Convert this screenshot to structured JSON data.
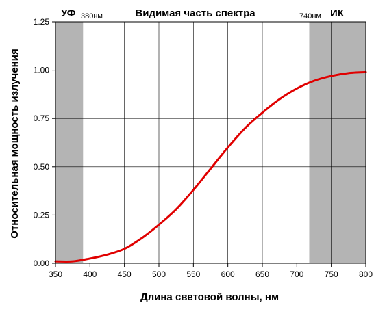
{
  "chart_data": {
    "type": "line",
    "title": "Видимая часть спектра",
    "xlabel": "Длина световой волны, нм",
    "ylabel": "Относительная мощность излучения",
    "xlim": [
      350,
      800
    ],
    "ylim": [
      0,
      1.25
    ],
    "xticks": [
      350,
      400,
      450,
      500,
      550,
      600,
      650,
      700,
      750,
      800
    ],
    "xtick_labels": [
      "350",
      "400",
      "450",
      "500",
      "550",
      "600",
      "650",
      "700",
      "750",
      "800"
    ],
    "yticks": [
      0,
      0.25,
      0.5,
      0.75,
      1.0,
      1.25
    ],
    "ytick_labels": [
      "0.00",
      "0.25",
      "0.50",
      "0.75",
      "1.00",
      "1.25"
    ],
    "grid": true,
    "regions": [
      {
        "label": "УФ",
        "marker": "380нм",
        "x0": 350,
        "x1": 390,
        "color": "#b4b4b4"
      },
      {
        "label": "ИК",
        "marker": "740нм",
        "x0": 718,
        "x1": 800,
        "color": "#b4b4b4"
      }
    ],
    "series": [
      {
        "color": "#e00000",
        "x": [
          350,
          375,
          400,
          425,
          450,
          475,
          500,
          525,
          550,
          575,
          600,
          625,
          650,
          675,
          700,
          725,
          750,
          775,
          800
        ],
        "y": [
          0.01,
          0.01,
          0.025,
          0.045,
          0.075,
          0.13,
          0.2,
          0.28,
          0.38,
          0.49,
          0.6,
          0.7,
          0.78,
          0.85,
          0.905,
          0.945,
          0.97,
          0.985,
          0.99
        ]
      }
    ]
  }
}
